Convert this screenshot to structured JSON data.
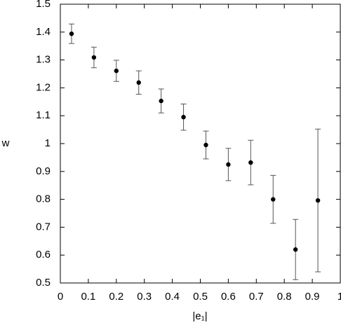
{
  "chart_data": {
    "type": "scatter",
    "x_label": "|e₁|",
    "y_label": "w",
    "x": [
      0.04,
      0.12,
      0.2,
      0.28,
      0.36,
      0.44,
      0.52,
      0.6,
      0.68,
      0.76,
      0.84,
      0.92
    ],
    "values": [
      1.394,
      1.309,
      1.261,
      1.219,
      1.153,
      1.095,
      0.995,
      0.925,
      0.932,
      0.8,
      0.62,
      0.796
    ],
    "errors": [
      0.035,
      0.037,
      0.038,
      0.042,
      0.043,
      0.047,
      0.05,
      0.058,
      0.08,
      0.086,
      0.108,
      0.256
    ],
    "color": "#000000",
    "xlim": [
      0,
      1
    ],
    "xticks": [
      0,
      0.1,
      0.2,
      0.3,
      0.4,
      0.5,
      0.6,
      0.7,
      0.8,
      0.9,
      1
    ],
    "ylim": [
      0.5,
      1.5
    ],
    "yticks": [
      0.5,
      0.6,
      0.7,
      0.8,
      0.9,
      1,
      1.1,
      1.2,
      1.3,
      1.4,
      1.5
    ]
  }
}
